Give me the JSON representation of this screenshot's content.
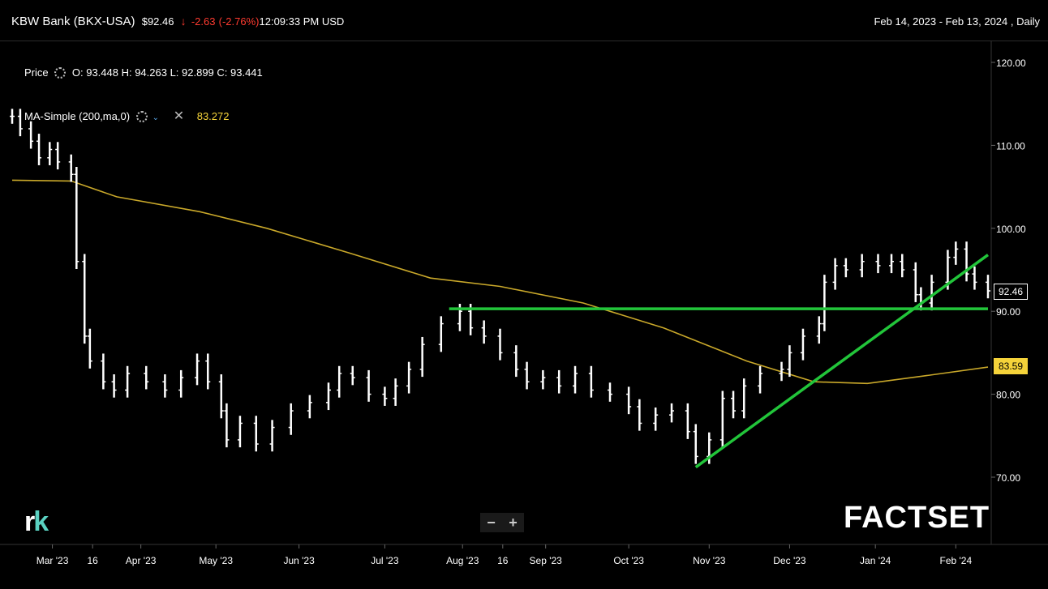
{
  "header": {
    "instrument": "KBW Bank (BKX-USA)",
    "last": "$92.46",
    "change": "-2.63",
    "change_pct": "(-2.76%)",
    "time": "12:09:33 PM USD",
    "date_range": "Feb 14, 2023 - Feb 13, 2024 , Daily"
  },
  "legend": {
    "price_label": "Price",
    "ohlc": "O: 93.448  H: 94.263  L: 92.899  C: 93.441",
    "ma_label": "MA-Simple (200,ma,0)",
    "ma_value": "83.272"
  },
  "tags": {
    "price": "92.46",
    "ma": "83.59"
  },
  "zoom": {
    "minus": "−",
    "plus": "+"
  },
  "logos": {
    "left_r": "r",
    "left_k": "k",
    "right": "FACTSET"
  },
  "colors": {
    "price_bar": "#ffffff",
    "ma_line": "#c9a82a",
    "trend_line": "#22c53a",
    "down": "#ff3b30",
    "ma_tag": "#f5d33a"
  },
  "chart_data": {
    "type": "line",
    "ylim": [
      64,
      122
    ],
    "y_ticks": [
      "120.00",
      "110.00",
      "100.00",
      "90.00",
      "80.00",
      "70.00"
    ],
    "y_tick_values": [
      120,
      110,
      100,
      90,
      80,
      70
    ],
    "x_ticks": [
      "Mar '23",
      "16",
      "Apr '23",
      "May '23",
      "Jun '23",
      "Jul '23",
      "Aug '23",
      "16",
      "Sep '23",
      "Oct '23",
      "Nov '23",
      "Dec '23",
      "Jan '24",
      "Feb '24"
    ],
    "x_tick_dates": [
      "2023-03-01",
      "2023-03-16",
      "2023-04-03",
      "2023-05-01",
      "2023-06-01",
      "2023-07-03",
      "2023-08-01",
      "2023-08-16",
      "2023-09-01",
      "2023-10-02",
      "2023-11-01",
      "2023-12-01",
      "2024-01-02",
      "2024-02-01"
    ],
    "x_range": [
      "2023-02-14",
      "2024-02-13"
    ],
    "series": [
      {
        "kind": "price",
        "points": [
          [
            "2023-02-14",
            113.5
          ],
          [
            "2023-02-17",
            112.0
          ],
          [
            "2023-02-21",
            110.5
          ],
          [
            "2023-02-24",
            108.5
          ],
          [
            "2023-02-28",
            109.5
          ],
          [
            "2023-03-03",
            108.0
          ],
          [
            "2023-03-08",
            106.5
          ],
          [
            "2023-03-10",
            96.0
          ],
          [
            "2023-03-13",
            87.0
          ],
          [
            "2023-03-15",
            84.0
          ],
          [
            "2023-03-20",
            81.5
          ],
          [
            "2023-03-24",
            80.5
          ],
          [
            "2023-03-29",
            82.5
          ],
          [
            "2023-04-05",
            81.5
          ],
          [
            "2023-04-12",
            80.5
          ],
          [
            "2023-04-18",
            82.0
          ],
          [
            "2023-04-24",
            84.0
          ],
          [
            "2023-04-28",
            81.5
          ],
          [
            "2023-05-03",
            78.0
          ],
          [
            "2023-05-05",
            74.5
          ],
          [
            "2023-05-10",
            76.5
          ],
          [
            "2023-05-16",
            74.0
          ],
          [
            "2023-05-22",
            76.0
          ],
          [
            "2023-05-29",
            78.0
          ],
          [
            "2023-06-05",
            79.0
          ],
          [
            "2023-06-12",
            80.5
          ],
          [
            "2023-06-16",
            82.5
          ],
          [
            "2023-06-21",
            82.0
          ],
          [
            "2023-06-27",
            80.0
          ],
          [
            "2023-07-03",
            79.5
          ],
          [
            "2023-07-07",
            81.0
          ],
          [
            "2023-07-12",
            83.0
          ],
          [
            "2023-07-17",
            86.0
          ],
          [
            "2023-07-24",
            88.5
          ],
          [
            "2023-07-31",
            90.0
          ],
          [
            "2023-08-04",
            88.0
          ],
          [
            "2023-08-09",
            87.0
          ],
          [
            "2023-08-15",
            85.0
          ],
          [
            "2023-08-21",
            83.0
          ],
          [
            "2023-08-25",
            81.5
          ],
          [
            "2023-08-31",
            82.0
          ],
          [
            "2023-09-06",
            81.0
          ],
          [
            "2023-09-12",
            82.5
          ],
          [
            "2023-09-18",
            80.5
          ],
          [
            "2023-09-25",
            80.0
          ],
          [
            "2023-10-02",
            78.5
          ],
          [
            "2023-10-06",
            76.5
          ],
          [
            "2023-10-12",
            77.5
          ],
          [
            "2023-10-18",
            78.0
          ],
          [
            "2023-10-24",
            75.5
          ],
          [
            "2023-10-27",
            72.5
          ],
          [
            "2023-11-01",
            74.5
          ],
          [
            "2023-11-06",
            79.5
          ],
          [
            "2023-11-10",
            78.0
          ],
          [
            "2023-11-14",
            81.0
          ],
          [
            "2023-11-20",
            82.5
          ],
          [
            "2023-11-28",
            83.0
          ],
          [
            "2023-12-01",
            85.0
          ],
          [
            "2023-12-06",
            87.0
          ],
          [
            "2023-12-12",
            88.5
          ],
          [
            "2023-12-14",
            93.5
          ],
          [
            "2023-12-18",
            95.5
          ],
          [
            "2023-12-22",
            95.0
          ],
          [
            "2023-12-28",
            96.0
          ],
          [
            "2024-01-03",
            95.5
          ],
          [
            "2024-01-08",
            96.0
          ],
          [
            "2024-01-12",
            95.0
          ],
          [
            "2024-01-17",
            92.0
          ],
          [
            "2024-01-19",
            91.0
          ],
          [
            "2024-01-23",
            93.5
          ],
          [
            "2024-01-29",
            96.5
          ],
          [
            "2024-02-01",
            97.5
          ],
          [
            "2024-02-05",
            94.5
          ],
          [
            "2024-02-08",
            93.5
          ],
          [
            "2024-02-13",
            92.46
          ]
        ]
      },
      {
        "kind": "ma",
        "points": [
          [
            "2023-02-14",
            105.8
          ],
          [
            "2023-03-08",
            105.7
          ],
          [
            "2023-03-25",
            103.8
          ],
          [
            "2023-04-25",
            102.0
          ],
          [
            "2023-05-20",
            100.0
          ],
          [
            "2023-06-20",
            97.0
          ],
          [
            "2023-07-20",
            94.0
          ],
          [
            "2023-08-15",
            93.0
          ],
          [
            "2023-09-15",
            91.0
          ],
          [
            "2023-10-15",
            88.0
          ],
          [
            "2023-11-15",
            84.0
          ],
          [
            "2023-12-10",
            81.5
          ],
          [
            "2023-12-30",
            81.3
          ],
          [
            "2024-01-20",
            82.2
          ],
          [
            "2024-02-13",
            83.27
          ]
        ]
      },
      {
        "kind": "trendline",
        "points": [
          [
            "2023-07-27",
            90.3
          ],
          [
            "2024-02-13",
            90.3
          ]
        ]
      },
      {
        "kind": "trendline",
        "points": [
          [
            "2023-10-27",
            71.2
          ],
          [
            "2024-02-13",
            96.8
          ]
        ]
      }
    ]
  }
}
